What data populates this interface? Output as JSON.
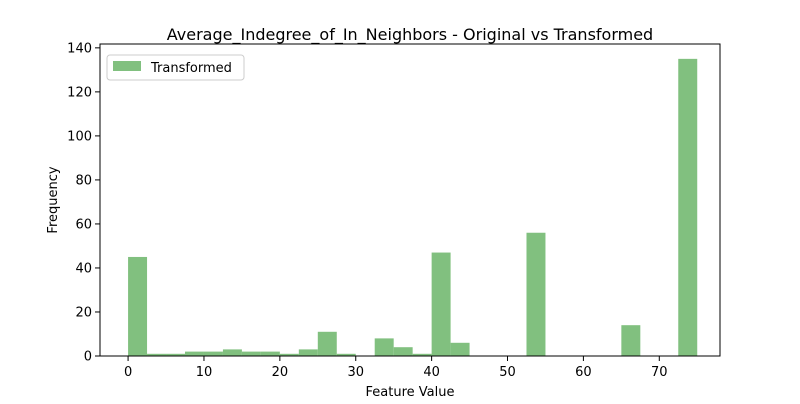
{
  "chart_data": {
    "type": "bar",
    "title": "Average_Indegree_of_In_Neighbors - Original vs Transformed",
    "xlabel": "Feature Value",
    "ylabel": "Frequency",
    "xlim": [
      -3.7,
      78.0
    ],
    "ylim": [
      0,
      141.75
    ],
    "xticks": [
      0,
      10,
      20,
      30,
      40,
      50,
      60,
      70
    ],
    "yticks": [
      0,
      20,
      40,
      60,
      80,
      100,
      120,
      140
    ],
    "grid": false,
    "legend_position": "top-left",
    "bin_start": 0,
    "bin_width": 2.5,
    "series": [
      {
        "name": "Transformed",
        "color": "#81c07f",
        "values": [
          45,
          1,
          1,
          2,
          2,
          3,
          2,
          2,
          1,
          3,
          11,
          1,
          0,
          8,
          4,
          1,
          47,
          6,
          0,
          0,
          0,
          56,
          0,
          0,
          0,
          0,
          14,
          0,
          0,
          135
        ]
      }
    ]
  }
}
